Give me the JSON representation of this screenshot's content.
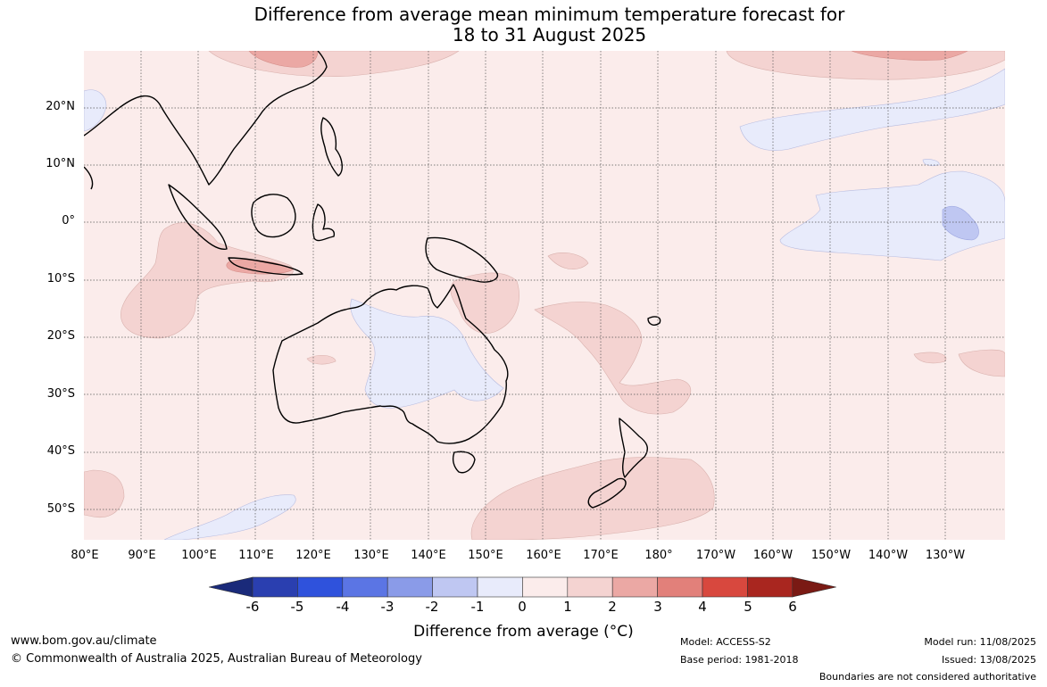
{
  "title_line1": "Difference from average mean minimum temperature forecast for",
  "title_line2": "18 to 31 August 2025",
  "latitude_labels": [
    "20°N",
    "10°N",
    "0°",
    "10°S",
    "20°S",
    "30°S",
    "40°S",
    "50°S"
  ],
  "longitude_labels": [
    "80°E",
    "90°E",
    "100°E",
    "110°E",
    "120°E",
    "130°E",
    "140°E",
    "150°E",
    "160°E",
    "170°E",
    "180°",
    "170°W",
    "160°W",
    "150°W",
    "140°W",
    "130°W"
  ],
  "colorbar": {
    "ticks": [
      "-6",
      "-5",
      "-4",
      "-3",
      "-2",
      "-1",
      "0",
      "1",
      "2",
      "3",
      "4",
      "5",
      "6"
    ],
    "colors": [
      "#1a2a7a",
      "#2a3fb0",
      "#2f52dc",
      "#5b75e4",
      "#8a9be8",
      "#bfc7f2",
      "#e8ebfb",
      "#fbeceb",
      "#f4d3d1",
      "#eba8a4",
      "#e2807a",
      "#d8483e",
      "#a9261f",
      "#7a1a14"
    ],
    "title": "Difference from average (°C)"
  },
  "footer": {
    "website": "www.bom.gov.au/climate",
    "copyright": "© Commonwealth of Australia 2025, Australian Bureau of Meteorology",
    "model": "Model: ACCESS-S2",
    "base_period": "Base period: 1981-2018",
    "model_run": "Model run: 11/08/2025",
    "issued": "Issued: 13/08/2025",
    "disclaimer": "Boundaries are not considered authoritative"
  }
}
